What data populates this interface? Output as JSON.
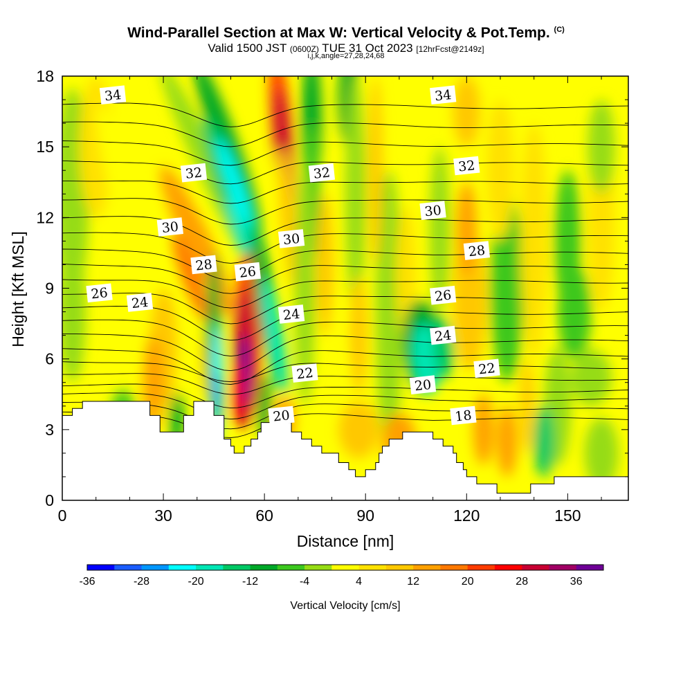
{
  "title": "Wind-Parallel Section at Max W: Vertical Velocity & Pot.Temp.",
  "title_mark": "(C)",
  "subtitle_valid": "Valid 1500 JST",
  "subtitle_utc": "(0600Z)",
  "subtitle_date": "TUE 31 Oct 2023",
  "subtitle_fcst": "[12hrFcst@2149z]",
  "subtitle_ijk": "i,j,k,angle=27,28,24,68",
  "colors": {
    "scale": [
      "#0000ff",
      "#1a5cff",
      "#0096ff",
      "#00ffff",
      "#00e6b4",
      "#00c864",
      "#00a828",
      "#3cc81e",
      "#96dc14",
      "#ffff00",
      "#ffe100",
      "#ffc800",
      "#ffa000",
      "#ff7800",
      "#ff3c00",
      "#ff0000",
      "#c80032",
      "#a00064",
      "#6e0096"
    ],
    "terrain": "#ffffff",
    "contour": "#000000"
  },
  "chart_data": {
    "type": "heatmap",
    "title": "Wind-Parallel Section at Max W: Vertical Velocity & Pot.Temp.",
    "xlabel": "Distance [nm]",
    "ylabel": "Height [Kft MSL]",
    "xlim": [
      0,
      168
    ],
    "ylim": [
      0,
      18
    ],
    "xticks": [
      0,
      30,
      60,
      90,
      120,
      150
    ],
    "yticks": [
      0,
      3,
      6,
      9,
      12,
      15,
      18
    ],
    "colorbar": {
      "label": "Vertical Velocity [cm/s]",
      "levels": [
        -36,
        -32,
        -28,
        -24,
        -20,
        -16,
        -12,
        -8,
        -4,
        0,
        4,
        8,
        12,
        16,
        20,
        24,
        28,
        32,
        36,
        40
      ],
      "tick_values": [
        -36,
        -28,
        -20,
        -12,
        -4,
        4,
        12,
        20,
        28,
        36
      ],
      "tick_labels": [
        "-36",
        "-28",
        "-20",
        "-12",
        "-4",
        "4",
        "12",
        "20",
        "28",
        "36"
      ]
    },
    "terrain_height": [
      [
        0,
        3.6
      ],
      [
        3,
        3.6
      ],
      [
        3,
        3.9
      ],
      [
        6,
        3.9
      ],
      [
        6,
        4.2
      ],
      [
        26,
        4.2
      ],
      [
        26,
        3.6
      ],
      [
        29,
        3.6
      ],
      [
        29,
        2.9
      ],
      [
        36,
        2.9
      ],
      [
        36,
        3.6
      ],
      [
        39,
        3.6
      ],
      [
        39,
        4.2
      ],
      [
        45,
        4.2
      ],
      [
        45,
        3.6
      ],
      [
        48,
        3.6
      ],
      [
        48,
        2.6
      ],
      [
        50,
        2.6
      ],
      [
        50,
        2.3
      ],
      [
        51,
        2.3
      ],
      [
        51,
        2.0
      ],
      [
        54,
        2.0
      ],
      [
        54,
        2.3
      ],
      [
        56,
        2.3
      ],
      [
        56,
        2.6
      ],
      [
        58,
        2.6
      ],
      [
        58,
        2.9
      ],
      [
        59,
        2.9
      ],
      [
        59,
        3.3
      ],
      [
        62,
        3.3
      ],
      [
        62,
        3.6
      ],
      [
        67,
        3.6
      ],
      [
        67,
        3.3
      ],
      [
        68,
        3.3
      ],
      [
        68,
        2.9
      ],
      [
        71,
        2.9
      ],
      [
        71,
        2.6
      ],
      [
        74,
        2.6
      ],
      [
        74,
        2.3
      ],
      [
        77,
        2.3
      ],
      [
        77,
        2.0
      ],
      [
        82,
        2.0
      ],
      [
        82,
        1.6
      ],
      [
        85,
        1.6
      ],
      [
        85,
        1.3
      ],
      [
        87,
        1.3
      ],
      [
        87,
        1.0
      ],
      [
        90,
        1.0
      ],
      [
        90,
        1.3
      ],
      [
        93,
        1.3
      ],
      [
        93,
        1.6
      ],
      [
        94,
        1.6
      ],
      [
        94,
        2.0
      ],
      [
        95,
        2.0
      ],
      [
        95,
        2.3
      ],
      [
        97,
        2.3
      ],
      [
        97,
        2.6
      ],
      [
        101,
        2.6
      ],
      [
        101,
        2.9
      ],
      [
        104,
        2.9
      ],
      [
        104,
        2.9
      ],
      [
        110,
        2.9
      ],
      [
        110,
        2.6
      ],
      [
        113,
        2.6
      ],
      [
        113,
        2.3
      ],
      [
        116,
        2.3
      ],
      [
        116,
        2.0
      ],
      [
        117,
        2.0
      ],
      [
        117,
        1.6
      ],
      [
        119,
        1.6
      ],
      [
        119,
        1.3
      ],
      [
        120,
        1.3
      ],
      [
        120,
        1.0
      ],
      [
        123,
        1.0
      ],
      [
        123,
        0.7
      ],
      [
        129,
        0.7
      ],
      [
        129,
        0.3
      ],
      [
        139,
        0.3
      ],
      [
        139,
        0.7
      ],
      [
        146,
        0.7
      ],
      [
        146,
        1.0
      ],
      [
        168,
        1.0
      ]
    ],
    "theta_labels": [
      {
        "value": "34",
        "x": 15,
        "y": 17.2
      },
      {
        "value": "34",
        "x": 113,
        "y": 17.2
      },
      {
        "value": "32",
        "x": 39,
        "y": 13.9
      },
      {
        "value": "32",
        "x": 77,
        "y": 13.9
      },
      {
        "value": "32",
        "x": 120,
        "y": 14.2
      },
      {
        "value": "30",
        "x": 32,
        "y": 11.6
      },
      {
        "value": "30",
        "x": 68,
        "y": 11.1
      },
      {
        "value": "30",
        "x": 110,
        "y": 12.3
      },
      {
        "value": "28",
        "x": 42,
        "y": 10.0
      },
      {
        "value": "28",
        "x": 123,
        "y": 10.6
      },
      {
        "value": "26",
        "x": 11,
        "y": 8.8
      },
      {
        "value": "26",
        "x": 55,
        "y": 9.7
      },
      {
        "value": "26",
        "x": 113,
        "y": 8.7
      },
      {
        "value": "24",
        "x": 23,
        "y": 8.4
      },
      {
        "value": "24",
        "x": 68,
        "y": 7.9
      },
      {
        "value": "24",
        "x": 113,
        "y": 7.0
      },
      {
        "value": "22",
        "x": 72,
        "y": 5.4
      },
      {
        "value": "22",
        "x": 126,
        "y": 5.6
      },
      {
        "value": "20",
        "x": 65,
        "y": 3.6
      },
      {
        "value": "20",
        "x": 107,
        "y": 4.9
      },
      {
        "value": "18",
        "x": 119,
        "y": 3.6
      }
    ]
  }
}
